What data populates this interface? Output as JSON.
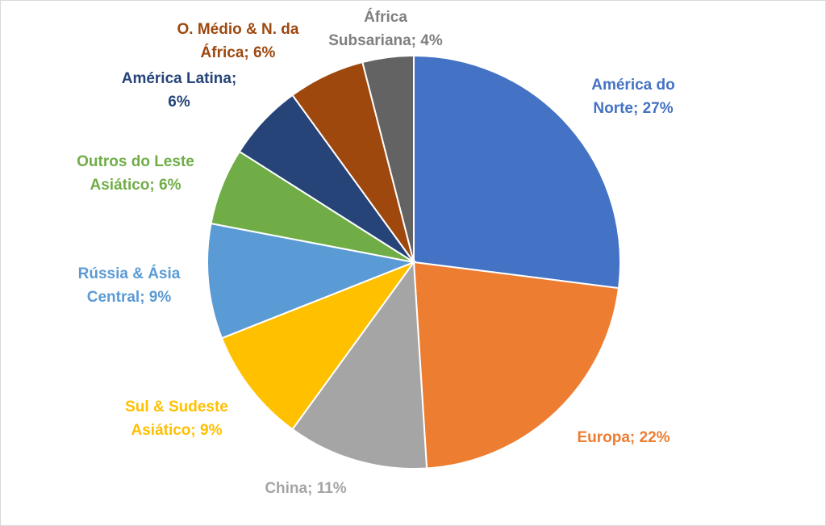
{
  "chart_data": {
    "type": "pie",
    "start_angle_deg": 0,
    "direction": "clockwise",
    "slices": [
      {
        "label_lines": [
          "América do",
          "Norte; 27%"
        ],
        "value": 27,
        "color": "#4472C4"
      },
      {
        "label_lines": [
          "Europa; 22%"
        ],
        "value": 22,
        "color": "#ED7D31"
      },
      {
        "label_lines": [
          "China; 11%"
        ],
        "value": 11,
        "color": "#A5A5A5"
      },
      {
        "label_lines": [
          "Sul & Sudeste",
          "Asiático; 9%"
        ],
        "value": 9,
        "color": "#FFC000"
      },
      {
        "label_lines": [
          "Rússia & Ásia",
          "Central; 9%"
        ],
        "value": 9,
        "color": "#5B9BD5"
      },
      {
        "label_lines": [
          "Outros do Leste",
          "Asiático; 6%"
        ],
        "value": 6,
        "color": "#70AD47"
      },
      {
        "label_lines": [
          "América Latina;",
          "6%"
        ],
        "value": 6,
        "color": "#264478"
      },
      {
        "label_lines": [
          "O. Médio & N. da",
          "África; 6%"
        ],
        "value": 6,
        "color": "#9E480E"
      },
      {
        "label_lines": [
          "África",
          "Subsariana; 4%"
        ],
        "value": 4,
        "color": "#636363"
      }
    ],
    "label_colors": [
      "#4472C4",
      "#ED7D31",
      "#A5A5A5",
      "#FFC000",
      "#5B9BD5",
      "#70AD47",
      "#264478",
      "#9E480E",
      "#7F7F7F"
    ],
    "legend": "none"
  }
}
